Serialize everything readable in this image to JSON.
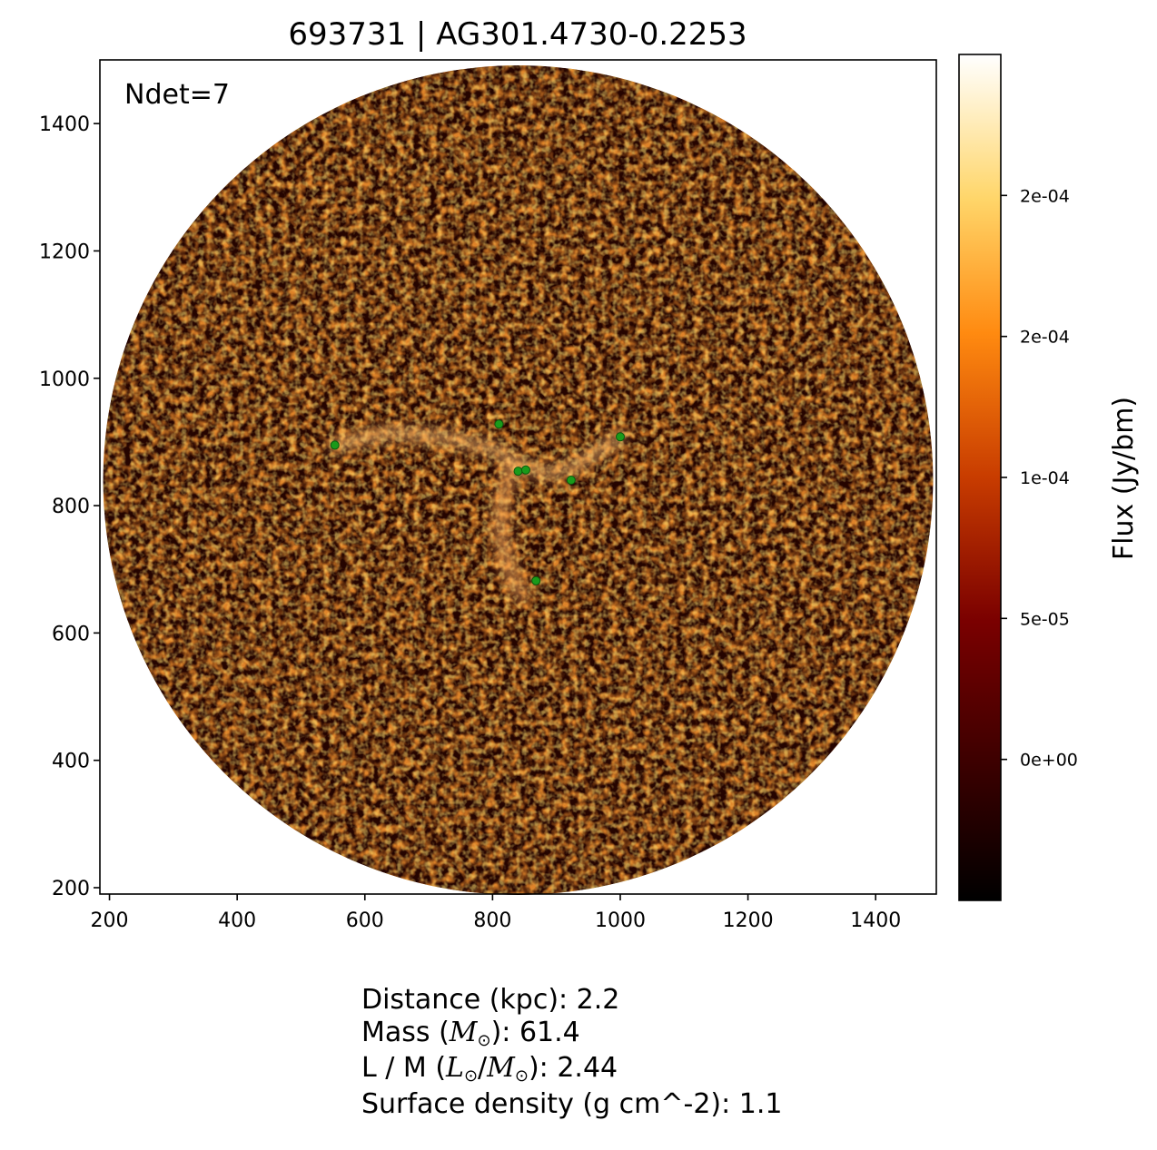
{
  "chart_data": [
    {
      "type": "heatmap",
      "title": "693731 | AG301.4730-0.2253",
      "annotation": "Ndet=7",
      "xlabel": "",
      "ylabel": "",
      "xlim": [
        185,
        1495
      ],
      "ylim": [
        190,
        1500
      ],
      "xticks": [
        200,
        400,
        600,
        800,
        1000,
        1200,
        1400
      ],
      "yticks": [
        200,
        400,
        600,
        800,
        1000,
        1200,
        1400
      ],
      "image_footprint": {
        "shape": "circle",
        "center": [
          840,
          840
        ],
        "radius": 650
      },
      "colormap": "afmhot",
      "grid": false,
      "colorbar": {
        "label": "Flux (Jy/bm)",
        "range": [
          -5e-05,
          0.00025
        ],
        "ticks": [
          {
            "value": 0.0,
            "label": "0e+00"
          },
          {
            "value": 5e-05,
            "label": "5e-05"
          },
          {
            "value": 0.0001,
            "label": "1e-04"
          },
          {
            "value": 0.00015,
            "label": "2e-04"
          },
          {
            "value": 0.0002,
            "label": "2e-04"
          }
        ]
      },
      "bright_filament_path": [
        [
          553,
          895
        ],
        [
          640,
          915
        ],
        [
          720,
          908
        ],
        [
          800,
          890
        ],
        [
          850,
          860
        ],
        [
          890,
          850
        ],
        [
          930,
          862
        ],
        [
          1000,
          908
        ]
      ],
      "bright_arc_path": [
        [
          830,
          860
        ],
        [
          815,
          810
        ],
        [
          812,
          760
        ],
        [
          825,
          700
        ],
        [
          845,
          660
        ]
      ],
      "detections": {
        "color": "#1a9a1a",
        "points": [
          {
            "x": 553,
            "y": 895
          },
          {
            "x": 810,
            "y": 928
          },
          {
            "x": 1000,
            "y": 908
          },
          {
            "x": 840,
            "y": 854
          },
          {
            "x": 852,
            "y": 856
          },
          {
            "x": 923,
            "y": 840
          },
          {
            "x": 868,
            "y": 682
          }
        ]
      }
    }
  ],
  "info": {
    "distance": "Distance (kpc): 2.2",
    "mass_prefix": "Mass (",
    "mass_suffix": "): 61.4",
    "lm_prefix": "L / M (",
    "lm_suffix": "): 2.44",
    "surface_density": "Surface density (g cm^-2): 1.1",
    "sym_M": "M",
    "sym_L": "L",
    "sym_sun": "⊙"
  }
}
